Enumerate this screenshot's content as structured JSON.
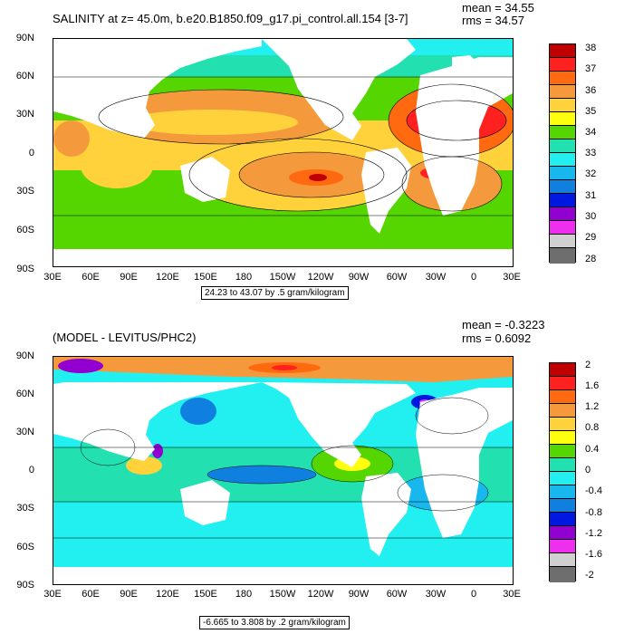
{
  "panel1": {
    "title": "SALINITY at z=  45.0m, b.e20.B1850.f09_g17.pi_control.all.154 [3-7]",
    "mean": "mean = 34.55",
    "rms": "rms = 34.57",
    "info": "24.23 to 43.07 by .5 gram/kilogram",
    "colorbar": {
      "labels": [
        "38",
        "37",
        "36",
        "35",
        "34",
        "33",
        "32",
        "31",
        "30",
        "29",
        "28"
      ],
      "colors": [
        "#c00000",
        "#ff2020",
        "#ff6a10",
        "#f59a3c",
        "#ffd23c",
        "#ffff10",
        "#55d600",
        "#22e0b0",
        "#22f0f0",
        "#18b8ef",
        "#1080e0",
        "#0018e0",
        "#9100d0",
        "#ee30ee",
        "#d0d0d0",
        "#6e6e6e"
      ]
    }
  },
  "panel2": {
    "title": "(MODEL - LEVITUS/PHC2)",
    "mean": "mean = -0.3223",
    "rms": "rms = 0.6092",
    "info": "-6.665 to 3.808 by .2 gram/kilogram",
    "colorbar": {
      "labels": [
        "2",
        "1.6",
        "1.2",
        "0.8",
        "0.4",
        "0",
        "-0.4",
        "-0.8",
        "-1.2",
        "-1.6",
        "-2"
      ],
      "colors": [
        "#c00000",
        "#ff2020",
        "#ff6a10",
        "#f59a3c",
        "#ffd23c",
        "#ffff10",
        "#55d600",
        "#22e0b0",
        "#22f0f0",
        "#18b8ef",
        "#1080e0",
        "#0018e0",
        "#9100d0",
        "#ee30ee",
        "#d0d0d0",
        "#6e6e6e"
      ]
    }
  },
  "axes": {
    "ylabels": [
      "90N",
      "60N",
      "30N",
      "0",
      "30S",
      "60S",
      "90S"
    ],
    "xlabels": [
      "30E",
      "60E",
      "90E",
      "120E",
      "150E",
      "180",
      "150W",
      "120W",
      "90W",
      "60W",
      "30W",
      "0",
      "30E"
    ]
  }
}
